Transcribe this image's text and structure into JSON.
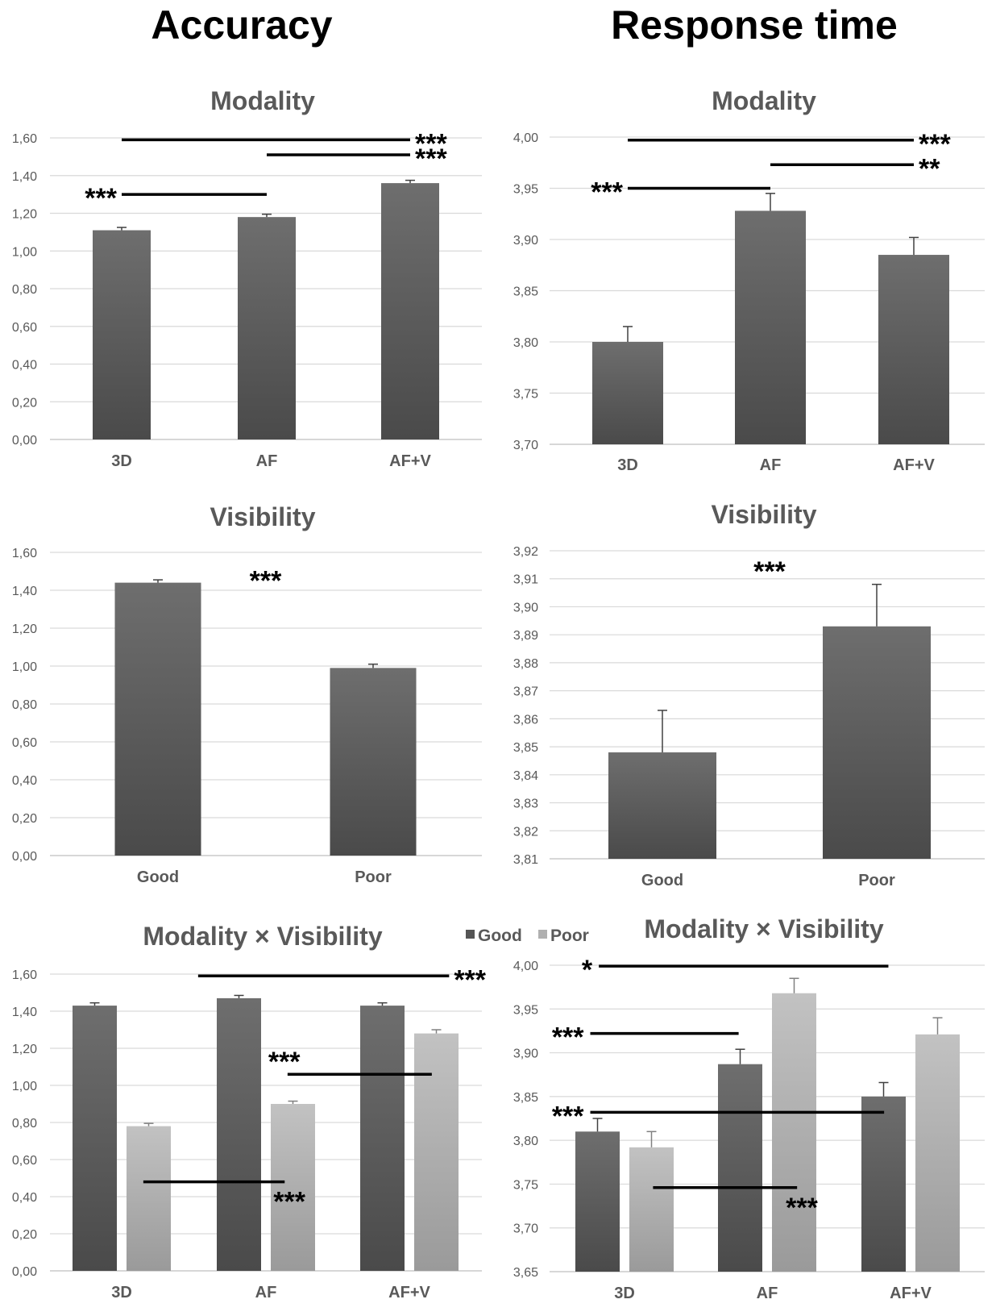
{
  "column_titles": {
    "accuracy": "Accuracy",
    "response_time": "Response time"
  },
  "chart_data": [
    {
      "id": "acc-modality",
      "type": "bar",
      "title": "Modality",
      "categories": [
        "3D",
        "AF",
        "AF+V"
      ],
      "series": [
        {
          "values": [
            1.11,
            1.18,
            1.36
          ],
          "errors": [
            0.015,
            0.015,
            0.015
          ],
          "color": "#555555"
        }
      ],
      "ylim": [
        0,
        1.6
      ],
      "yticks": [
        "0,00",
        "0,20",
        "0,40",
        "0,60",
        "0,80",
        "1,00",
        "1,20",
        "1,40",
        "1,60"
      ],
      "grid": true,
      "significance": [
        {
          "from": "3D",
          "to": "AF+V",
          "y": 1.59,
          "label": "***",
          "label_side": "right"
        },
        {
          "from": "AF",
          "to": "AF+V",
          "y": 1.51,
          "label": "***",
          "label_side": "right"
        },
        {
          "from": "3D",
          "to": "AF",
          "y": 1.3,
          "label": "***",
          "label_side": "left"
        }
      ]
    },
    {
      "id": "rt-modality",
      "type": "bar",
      "title": "Modality",
      "categories": [
        "3D",
        "AF",
        "AF+V"
      ],
      "series": [
        {
          "values": [
            3.8,
            3.928,
            3.885
          ],
          "errors": [
            0.015,
            0.017,
            0.017
          ],
          "color": "#555555"
        }
      ],
      "ylim": [
        3.7,
        4.0
      ],
      "yticks": [
        "3,70",
        "3,75",
        "3,80",
        "3,85",
        "3,90",
        "3,95",
        "4,00"
      ],
      "grid": true,
      "significance": [
        {
          "from": "3D",
          "to": "AF+V",
          "y": 3.997,
          "label": "***",
          "label_side": "right"
        },
        {
          "from": "AF",
          "to": "AF+V",
          "y": 3.973,
          "label": "**",
          "label_side": "right"
        },
        {
          "from": "3D",
          "to": "AF",
          "y": 3.95,
          "label": "***",
          "label_side": "left"
        }
      ]
    },
    {
      "id": "acc-visibility",
      "type": "bar",
      "title": "Visibility",
      "categories": [
        "Good",
        "Poor"
      ],
      "series": [
        {
          "values": [
            1.44,
            0.99
          ],
          "errors": [
            0.015,
            0.02
          ],
          "color": "#555555"
        }
      ],
      "ylim": [
        0,
        1.6
      ],
      "yticks": [
        "0,00",
        "0,20",
        "0,40",
        "0,60",
        "0,80",
        "1,00",
        "1,20",
        "1,40",
        "1,60"
      ],
      "grid": true,
      "annotations": [
        {
          "label": "***",
          "x": 0.5,
          "y": 1.47
        }
      ]
    },
    {
      "id": "rt-visibility",
      "type": "bar",
      "title": "Visibility",
      "categories": [
        "Good",
        "Poor"
      ],
      "series": [
        {
          "values": [
            3.848,
            3.893
          ],
          "errors": [
            0.015,
            0.015
          ],
          "color": "#555555"
        }
      ],
      "ylim": [
        3.81,
        3.92
      ],
      "yticks": [
        "3,81",
        "3,82",
        "3,83",
        "3,84",
        "3,85",
        "3,86",
        "3,87",
        "3,88",
        "3,89",
        "3,90",
        "3,91",
        "3,92"
      ],
      "grid": true,
      "annotations": [
        {
          "label": "***",
          "x": 0.5,
          "y": 3.914
        }
      ]
    },
    {
      "id": "acc-interaction",
      "type": "bar",
      "title": "Modality × Visibility",
      "categories": [
        "3D",
        "AF",
        "AF+V"
      ],
      "series": [
        {
          "name": "Good",
          "values": [
            1.43,
            1.47,
            1.43
          ],
          "errors": [
            0.015,
            0.015,
            0.015
          ],
          "color": "#555555"
        },
        {
          "name": "Poor",
          "values": [
            0.78,
            0.9,
            1.28
          ],
          "errors": [
            0.015,
            0.015,
            0.02
          ],
          "color": "#b0b0b0"
        }
      ],
      "ylim": [
        0,
        1.6
      ],
      "yticks": [
        "0,00",
        "0,20",
        "0,40",
        "0,60",
        "0,80",
        "1,00",
        "1,20",
        "1,40",
        "1,60"
      ],
      "grid": true,
      "legend": {
        "position": "top-right",
        "labels": [
          "Good",
          "Poor"
        ]
      },
      "significance_lines": [
        {
          "x1": 0.53,
          "x2": 2.27,
          "y": 1.59,
          "label": "***",
          "label_side": "right"
        },
        {
          "x1": 1.15,
          "x2": 2.15,
          "y": 1.06,
          "label": "***",
          "label_side": "above-left"
        },
        {
          "x1": 0.15,
          "x2": 1.13,
          "y": 0.48,
          "label": "***",
          "label_side": "below-right"
        }
      ]
    },
    {
      "id": "rt-interaction",
      "type": "bar",
      "title": "Modality × Visibility",
      "categories": [
        "3D",
        "AF",
        "AF+V"
      ],
      "series": [
        {
          "name": "Good",
          "values": [
            3.81,
            3.887,
            3.85
          ],
          "errors": [
            0.015,
            0.017,
            0.016
          ],
          "color": "#555555"
        },
        {
          "name": "Poor",
          "values": [
            3.792,
            3.968,
            3.921
          ],
          "errors": [
            0.018,
            0.017,
            0.019
          ],
          "color": "#b0b0b0"
        }
      ],
      "ylim": [
        3.65,
        4.0
      ],
      "yticks": [
        "3,65",
        "3,70",
        "3,75",
        "3,80",
        "3,85",
        "3,90",
        "3,95",
        "4,00"
      ],
      "grid": true,
      "significance_lines": [
        {
          "x1": -0.18,
          "x2": 1.85,
          "y": 3.999,
          "label": "*",
          "label_side": "left"
        },
        {
          "x1": -0.24,
          "x2": 0.8,
          "y": 3.922,
          "label": "***",
          "label_side": "left"
        },
        {
          "x1": -0.24,
          "x2": 1.82,
          "y": 3.832,
          "label": "***",
          "label_side": "left"
        },
        {
          "x1": 0.2,
          "x2": 1.21,
          "y": 3.746,
          "label": "***",
          "label_side": "below-right"
        }
      ]
    }
  ]
}
